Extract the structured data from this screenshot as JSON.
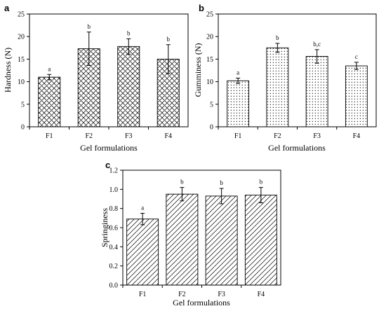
{
  "chart_data": [
    {
      "panel_label": "a",
      "type": "bar",
      "pattern": "crosshatch",
      "categories": [
        "F1",
        "F2",
        "F3",
        "F4"
      ],
      "values": [
        11.0,
        17.3,
        17.8,
        15.0
      ],
      "errors": [
        0.6,
        3.7,
        1.7,
        3.2
      ],
      "significance": [
        "a",
        "b",
        "b",
        "b"
      ],
      "xlabel": "Gel formulations",
      "ylabel": "Hardness (N)",
      "ylim": [
        0,
        25
      ],
      "yticks": [
        0,
        5,
        10,
        15,
        20,
        25
      ],
      "ytick_labels": [
        "0",
        "5",
        "10",
        "15",
        "20",
        "25"
      ]
    },
    {
      "panel_label": "b",
      "type": "bar",
      "pattern": "dots",
      "categories": [
        "F1",
        "F2",
        "F3",
        "F4"
      ],
      "values": [
        10.2,
        17.5,
        15.6,
        13.5
      ],
      "errors": [
        0.6,
        1.0,
        1.5,
        0.8
      ],
      "significance": [
        "a",
        "b",
        "b,c",
        "c"
      ],
      "xlabel": "Gel formulations",
      "ylabel": "Gumminess (N)",
      "ylim": [
        0,
        25
      ],
      "yticks": [
        0,
        5,
        10,
        15,
        20,
        25
      ],
      "ytick_labels": [
        "0",
        "5",
        "10",
        "15",
        "20",
        "25"
      ]
    },
    {
      "panel_label": "c",
      "type": "bar",
      "pattern": "diagonal",
      "categories": [
        "F1",
        "F2",
        "F3",
        "F4"
      ],
      "values": [
        0.69,
        0.95,
        0.93,
        0.94
      ],
      "errors": [
        0.06,
        0.07,
        0.08,
        0.08
      ],
      "significance": [
        "a",
        "b",
        "b",
        "b"
      ],
      "xlabel": "Gel formulations",
      "ylabel": "Springiness",
      "ylim": [
        0,
        1.2
      ],
      "yticks": [
        0,
        0.2,
        0.4,
        0.6,
        0.8,
        1.0,
        1.2
      ],
      "ytick_labels": [
        "0.0",
        "0.2",
        "0.4",
        "0.6",
        "0.8",
        "1.0",
        "1.2"
      ]
    }
  ]
}
